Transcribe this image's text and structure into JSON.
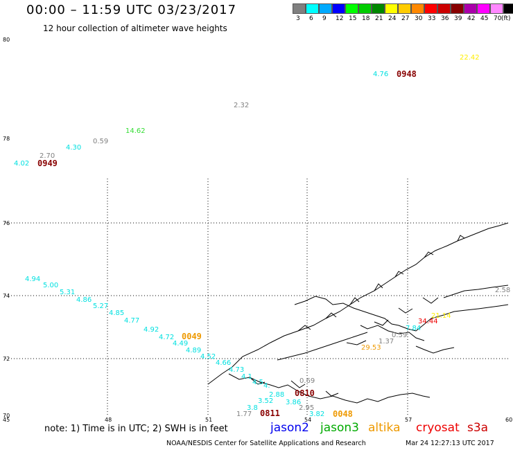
{
  "header": {
    "title": "00:00 – 11:59 UTC 03/23/2017",
    "subtitle": "12 hour collection of altimeter wave heights"
  },
  "scale": {
    "unit": "(ft)",
    "bins": [
      {
        "label": "3",
        "color": "#808080"
      },
      {
        "label": "6",
        "color": "#00ffff"
      },
      {
        "label": "9",
        "color": "#00aaff"
      },
      {
        "label": "12",
        "color": "#0000ff"
      },
      {
        "label": "15",
        "color": "#00ff00"
      },
      {
        "label": "18",
        "color": "#00cc00"
      },
      {
        "label": "21",
        "color": "#008800"
      },
      {
        "label": "24",
        "color": "#ffff00"
      },
      {
        "label": "27",
        "color": "#ffcc00"
      },
      {
        "label": "30",
        "color": "#ff8800"
      },
      {
        "label": "33",
        "color": "#ff0000"
      },
      {
        "label": "36",
        "color": "#cc0000"
      },
      {
        "label": "39",
        "color": "#880000"
      },
      {
        "label": "42",
        "color": "#aa00aa"
      },
      {
        "label": "45",
        "color": "#ff00ff"
      },
      {
        "label": "70",
        "color": "#ff88ff"
      },
      {
        "label": "",
        "color": "#000000"
      }
    ]
  },
  "map": {
    "lat_labels": [
      "80",
      "78",
      "76",
      "74",
      "72",
      "70"
    ],
    "lon_labels": [
      "45",
      "48",
      "51",
      "54",
      "57",
      "60"
    ],
    "colors": {
      "gray": "#808080",
      "cyan": "#00e0e0",
      "green": "#33dd33",
      "yellow": "#ffee00",
      "orange": "#ee9900",
      "red": "#ee0000",
      "darkred": "#880000"
    },
    "wave_heights": [
      {
        "text": "22.42",
        "color": "yellow"
      },
      {
        "text": "4.76",
        "color": "cyan"
      },
      {
        "text": "2.32",
        "color": "gray"
      },
      {
        "text": "14.62",
        "color": "green"
      },
      {
        "text": "0.59",
        "color": "gray"
      },
      {
        "text": "4.30",
        "color": "cyan"
      },
      {
        "text": "2.70",
        "color": "gray"
      },
      {
        "text": "4.02",
        "color": "cyan"
      },
      {
        "text": "4.94",
        "color": "cyan"
      },
      {
        "text": "5.00",
        "color": "cyan"
      },
      {
        "text": "5.31",
        "color": "cyan"
      },
      {
        "text": "4.86",
        "color": "cyan"
      },
      {
        "text": "5.27",
        "color": "cyan"
      },
      {
        "text": "4.85",
        "color": "cyan"
      },
      {
        "text": "4.77",
        "color": "cyan"
      },
      {
        "text": "4.92",
        "color": "cyan"
      },
      {
        "text": "4.72",
        "color": "cyan"
      },
      {
        "text": "4.49",
        "color": "cyan"
      },
      {
        "text": "4.89",
        "color": "cyan"
      },
      {
        "text": "4.52",
        "color": "cyan"
      },
      {
        "text": "4.66",
        "color": "cyan"
      },
      {
        "text": "4.73",
        "color": "cyan"
      },
      {
        "text": "4.1",
        "color": "cyan"
      },
      {
        "text": "4.5",
        "color": "cyan"
      },
      {
        "text": "4.",
        "color": "cyan"
      },
      {
        "text": "2.88",
        "color": "cyan"
      },
      {
        "text": "3.52",
        "color": "cyan"
      },
      {
        "text": "3.86",
        "color": "cyan"
      },
      {
        "text": "3.8",
        "color": "cyan"
      },
      {
        "text": "1.77",
        "color": "gray"
      },
      {
        "text": "2.95",
        "color": "gray"
      },
      {
        "text": "3.82",
        "color": "cyan"
      },
      {
        "text": "0.69",
        "color": "gray"
      },
      {
        "text": "2.58",
        "color": "gray"
      },
      {
        "text": "21.14",
        "color": "yellow"
      },
      {
        "text": "34.44",
        "color": "red"
      },
      {
        "text": "7.84",
        "color": "cyan"
      },
      {
        "text": "0.59",
        "color": "gray"
      },
      {
        "text": "1.37",
        "color": "gray"
      },
      {
        "text": "29.53",
        "color": "orange"
      }
    ],
    "pass_times": [
      {
        "text": "0948",
        "color": "darkred"
      },
      {
        "text": "0949",
        "color": "darkred"
      },
      {
        "text": "0049",
        "color": "orange"
      },
      {
        "text": "0810",
        "color": "darkred"
      },
      {
        "text": "0811",
        "color": "darkred"
      },
      {
        "text": "0048",
        "color": "orange"
      }
    ]
  },
  "footer": {
    "note": "note:  1) Time is in UTC;  2) SWH is in feet",
    "legend": [
      {
        "label": "jason2",
        "color": "#0000ee"
      },
      {
        "label": "jason3",
        "color": "#00aa00"
      },
      {
        "label": "altika",
        "color": "#ee9900"
      },
      {
        "label": "cryosat",
        "color": "#ee0000"
      },
      {
        "label": "s3a",
        "color": "#cc0000"
      }
    ],
    "credit": "NOAA/NESDIS Center for Satellite Applications and Research",
    "timestamp": "Mar 24 12:27:13 UTC 2017"
  }
}
